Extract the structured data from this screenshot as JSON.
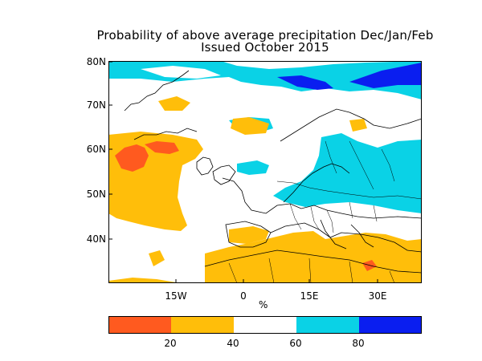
{
  "title_line1": "Probability of above average precipitation Dec/Jan/Feb",
  "title_line2": "Issued October 2015",
  "y_ticks": [
    "80N",
    "70N",
    "60N",
    "50N",
    "40N"
  ],
  "x_ticks": [
    "15W",
    "0",
    "15E",
    "30E"
  ],
  "unit": "%",
  "colorbar": {
    "bins": [
      {
        "range": "0-20",
        "color": "#ff5a1f"
      },
      {
        "range": "20-40",
        "color": "#ffbe0a"
      },
      {
        "range": "40-60",
        "color": "#ffffff"
      },
      {
        "range": "60-80",
        "color": "#0ad2e6"
      },
      {
        "range": "80-100",
        "color": "#0a1ef0"
      }
    ],
    "labels": [
      "20",
      "40",
      "60",
      "80"
    ]
  },
  "colors": {
    "very_low": "#ff5a1f",
    "low": "#ffbe0a",
    "neutral": "#ffffff",
    "high": "#0ad2e6",
    "very_high": "#0a1ef0"
  }
}
